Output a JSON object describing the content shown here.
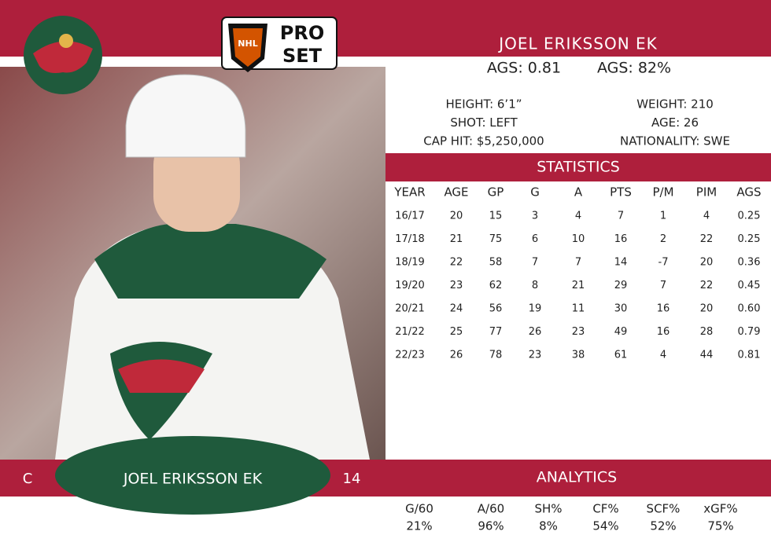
{
  "logo": {
    "league": "NHL",
    "brand_top": "PRO",
    "brand_bottom": "SET"
  },
  "player": {
    "name": "JOEL ERIKSSON EK",
    "ags_value": "AGS: 0.81",
    "ags_percent": "AGS: 82%"
  },
  "bio": {
    "left": [
      "HEIGHT: 6’1”",
      "SHOT: LEFT",
      "CAP HIT: $5,250,000"
    ],
    "right": [
      "WEIGHT: 210",
      "AGE: 26",
      "NATIONALITY: SWE"
    ]
  },
  "statistics": {
    "title": "STATISTICS",
    "columns": [
      "YEAR",
      "AGE",
      "GP",
      "G",
      "A",
      "PTS",
      "P/M",
      "PIM",
      "AGS"
    ],
    "rows": [
      [
        "16/17",
        "20",
        "15",
        "3",
        "4",
        "7",
        "1",
        "4",
        "0.25"
      ],
      [
        "17/18",
        "21",
        "75",
        "6",
        "10",
        "16",
        "2",
        "22",
        "0.25"
      ],
      [
        "18/19",
        "22",
        "58",
        "7",
        "7",
        "14",
        "-7",
        "20",
        "0.36"
      ],
      [
        "19/20",
        "23",
        "62",
        "8",
        "21",
        "29",
        "7",
        "22",
        "0.45"
      ],
      [
        "20/21",
        "24",
        "56",
        "19",
        "11",
        "30",
        "16",
        "20",
        "0.60"
      ],
      [
        "21/22",
        "25",
        "77",
        "26",
        "23",
        "49",
        "16",
        "28",
        "0.79"
      ],
      [
        "22/23",
        "26",
        "78",
        "23",
        "38",
        "61",
        "4",
        "44",
        "0.81"
      ]
    ]
  },
  "footer": {
    "position": "C",
    "name": "JOEL ERIKSSON EK",
    "number": "14"
  },
  "analytics": {
    "title": "ANALYTICS",
    "columns": [
      "G/60",
      "A/60",
      "SH%",
      "CF%",
      "SCF%",
      "xGF%"
    ],
    "values": [
      "21%",
      "96%",
      "8%",
      "54%",
      "52%",
      "75%"
    ]
  }
}
